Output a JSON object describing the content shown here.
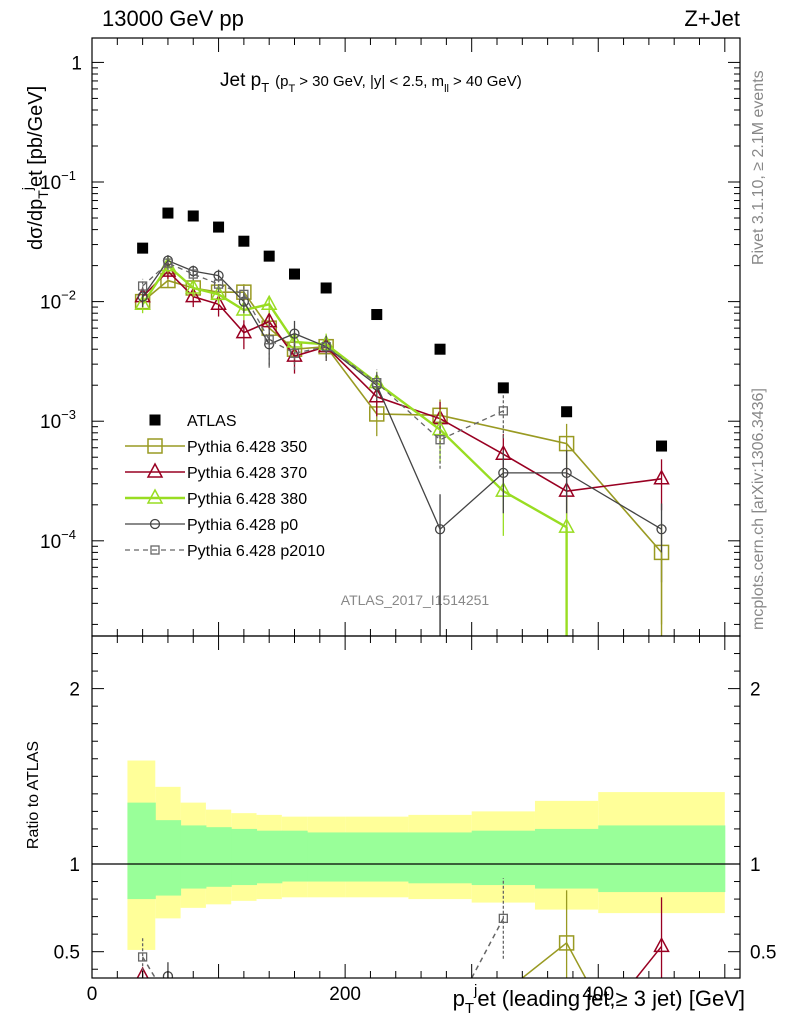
{
  "header": {
    "energy_label": "13000 GeV pp",
    "process_label": "Z+Jet"
  },
  "side_labels": {
    "rivet": "Rivet 3.1.10, ≥ 2.1M events",
    "mcplots": "mcplots.cern.ch [arXiv:1306.3436]"
  },
  "watermark": "ATLAS_2017_I1514251",
  "colors": {
    "ATLAS": "#000000",
    "p350": "#999a22",
    "p370": "#990022",
    "p380": "#99dd22",
    "p0": "#444444",
    "p2010": "#666666",
    "band_inner": "#99ff99",
    "band_outer": "#ffff99"
  },
  "chart_data": [
    {
      "type": "scatter",
      "title_main": "Jet p",
      "title_main_sub": "T",
      "title_cond": "(p",
      "title_cond_sub": "T",
      "title_cond_rest": "> 30 GeV, |y| < 2.5, m",
      "title_cond_sub2": "ll",
      "title_cond_end": "> 40 GeV)",
      "ylabel": "dσ/dp",
      "ylabel_sub": "T",
      "ylabel_sup": "j",
      "ylabel_rest": "et [pb/GeV]",
      "yscale": "log",
      "ylim": [
        1.6e-05,
        1.6
      ],
      "xlim": [
        0,
        500
      ],
      "y_ticks": [
        {
          "value": 1,
          "label": "1"
        },
        {
          "value": 0.1,
          "label": "10",
          "exp": "−1"
        },
        {
          "value": 0.01,
          "label": "10",
          "exp": "−2"
        },
        {
          "value": 0.001,
          "label": "10",
          "exp": "−3"
        },
        {
          "value": 0.0001,
          "label": "10",
          "exp": "−4"
        }
      ],
      "x_bins": [
        [
          30,
          50
        ],
        [
          50,
          70
        ],
        [
          70,
          90
        ],
        [
          90,
          110
        ],
        [
          110,
          130
        ],
        [
          130,
          150
        ],
        [
          150,
          170
        ],
        [
          170,
          200
        ],
        [
          200,
          250
        ],
        [
          250,
          300
        ],
        [
          300,
          350
        ],
        [
          350,
          400
        ],
        [
          400,
          500
        ]
      ],
      "x_centers": [
        40,
        60,
        80,
        100,
        120,
        140,
        160,
        185,
        225,
        275,
        325,
        375,
        450
      ],
      "series": [
        {
          "name": "ATLAS",
          "marker": "square-filled",
          "line": "none",
          "values": [
            0.028,
            0.055,
            0.052,
            0.042,
            0.032,
            0.024,
            0.017,
            0.013,
            0.0078,
            0.004,
            0.0019,
            0.0012,
            0.00062
          ]
        },
        {
          "name": "Pythia 6.428 350",
          "marker": "square-open",
          "line": "solid",
          "values": [
            0.01,
            0.015,
            0.013,
            0.012,
            0.012,
            0.006,
            0.004,
            0.0042,
            0.00115,
            0.00112,
            null,
            0.00065,
            8e-05
          ],
          "err": [
            0.0015,
            0.002,
            0.002,
            0.002,
            0.002,
            0.0015,
            0.001,
            0.001,
            0.0004,
            0.0004,
            null,
            0.0003,
            6e-05
          ]
        },
        {
          "name": "Pythia 6.428 370",
          "marker": "triangle-open",
          "line": "solid",
          "values": [
            0.011,
            0.018,
            0.011,
            0.0095,
            0.0055,
            0.0068,
            0.0035,
            0.0042,
            0.0016,
            0.00105,
            0.00053,
            0.00026,
            0.00033
          ],
          "err": [
            0.002,
            0.0025,
            0.002,
            0.002,
            0.0015,
            0.0015,
            0.001,
            0.001,
            0.0005,
            0.0004,
            0.00025,
            0.00015,
            0.00015
          ]
        },
        {
          "name": "Pythia 6.428 380",
          "marker": "triangle-open",
          "line": "solid",
          "values": [
            0.0095,
            0.02,
            0.013,
            0.0115,
            0.0085,
            0.0095,
            0.0046,
            0.0044,
            0.0021,
            0.00085,
            0.00026,
            0.00013,
            null
          ],
          "err": [
            0.0015,
            0.0025,
            0.002,
            0.002,
            0.0015,
            0.0015,
            0.001,
            0.001,
            0.0005,
            0.0004,
            0.00015,
            0.0001,
            null
          ]
        },
        {
          "name": "Pythia 6.428 p0",
          "marker": "circle-open",
          "line": "solid",
          "values": [
            0.011,
            0.022,
            0.018,
            0.0165,
            0.01,
            0.0044,
            0.0054,
            0.0042,
            0.002,
            0.000125,
            0.00037,
            0.00037,
            0.000125
          ],
          "err": [
            0.002,
            0.0025,
            0.002,
            0.002,
            0.002,
            0.0015,
            0.0015,
            0.001,
            0.0005,
            0.00012,
            0.0002,
            0.0002,
            8e-05
          ]
        },
        {
          "name": "Pythia 6.428 p2010",
          "marker": "square-open-small",
          "line": "dashed",
          "values": [
            0.0135,
            0.021,
            0.017,
            0.014,
            0.0115,
            0.0048,
            0.0037,
            0.0042,
            0.0021,
            0.0007,
            0.00122,
            null,
            null
          ],
          "err": [
            0.002,
            0.0025,
            0.002,
            0.002,
            0.002,
            0.002,
            0.001,
            0.001,
            0.0006,
            0.0003,
            0.0005,
            null,
            null
          ]
        }
      ]
    },
    {
      "type": "scatter",
      "ylabel": "Ratio to ATLAS",
      "xlabel": "p",
      "xlabel_sub": "T",
      "xlabel_sup": "j",
      "xlabel_rest": "et (leading jet,≥ 3 jet) [GeV]",
      "ylim": [
        0.35,
        2.3
      ],
      "xlim": [
        0,
        500
      ],
      "y_ticks": [
        {
          "value": 0.5,
          "label": "0.5"
        },
        {
          "value": 1,
          "label": "1"
        },
        {
          "value": 2,
          "label": "2"
        }
      ],
      "x_ticks": [
        {
          "value": 0,
          "label": "0"
        },
        {
          "value": 200,
          "label": "200"
        },
        {
          "value": 400,
          "label": "400"
        }
      ],
      "band_bins": [
        [
          28,
          50
        ],
        [
          50,
          70
        ],
        [
          70,
          90
        ],
        [
          90,
          110
        ],
        [
          110,
          130
        ],
        [
          130,
          150
        ],
        [
          150,
          170
        ],
        [
          170,
          200
        ],
        [
          200,
          250
        ],
        [
          250,
          300
        ],
        [
          300,
          350
        ],
        [
          350,
          400
        ],
        [
          400,
          500
        ]
      ],
      "band_inner": [
        [
          0.8,
          1.35
        ],
        [
          0.82,
          1.25
        ],
        [
          0.86,
          1.22
        ],
        [
          0.87,
          1.21
        ],
        [
          0.88,
          1.2
        ],
        [
          0.89,
          1.19
        ],
        [
          0.9,
          1.19
        ],
        [
          0.9,
          1.18
        ],
        [
          0.9,
          1.18
        ],
        [
          0.89,
          1.18
        ],
        [
          0.88,
          1.19
        ],
        [
          0.86,
          1.2
        ],
        [
          0.84,
          1.22
        ]
      ],
      "band_outer": [
        [
          0.51,
          1.59
        ],
        [
          0.69,
          1.44
        ],
        [
          0.75,
          1.35
        ],
        [
          0.77,
          1.31
        ],
        [
          0.79,
          1.29
        ],
        [
          0.8,
          1.28
        ],
        [
          0.81,
          1.27
        ],
        [
          0.81,
          1.27
        ],
        [
          0.81,
          1.27
        ],
        [
          0.8,
          1.28
        ],
        [
          0.78,
          1.3
        ],
        [
          0.74,
          1.36
        ],
        [
          0.72,
          1.41
        ]
      ],
      "series": [
        {
          "name": "Pythia 6.428 350",
          "points": [
            [
              375,
              0.55
            ]
          ],
          "err": [
            0.3
          ],
          "segments": [
            [
              [
                340,
                0.35
              ],
              [
                375,
                0.55
              ],
              [
                390,
                0.35
              ]
            ]
          ]
        },
        {
          "name": "Pythia 6.428 370",
          "points": [
            [
              40,
              0.36
            ],
            [
              450,
              0.53
            ]
          ],
          "err": [
            0.05,
            0.28
          ],
          "segments": [
            [
              [
                430,
                0.35
              ],
              [
                450,
                0.53
              ]
            ]
          ]
        },
        {
          "name": "Pythia 6.428 p0",
          "points": [
            [
              60,
              0.36
            ]
          ],
          "err": [
            0.08
          ],
          "segments": []
        },
        {
          "name": "Pythia 6.428 p2010",
          "points": [
            [
              40,
              0.47
            ],
            [
              325,
              0.69
            ]
          ],
          "err": [
            0.11,
            0.23
          ],
          "segments": [
            [
              [
                40,
                0.47
              ],
              [
                50,
                0.35
              ]
            ],
            [
              [
                300,
                0.35
              ],
              [
                325,
                0.69
              ]
            ]
          ]
        }
      ]
    }
  ]
}
